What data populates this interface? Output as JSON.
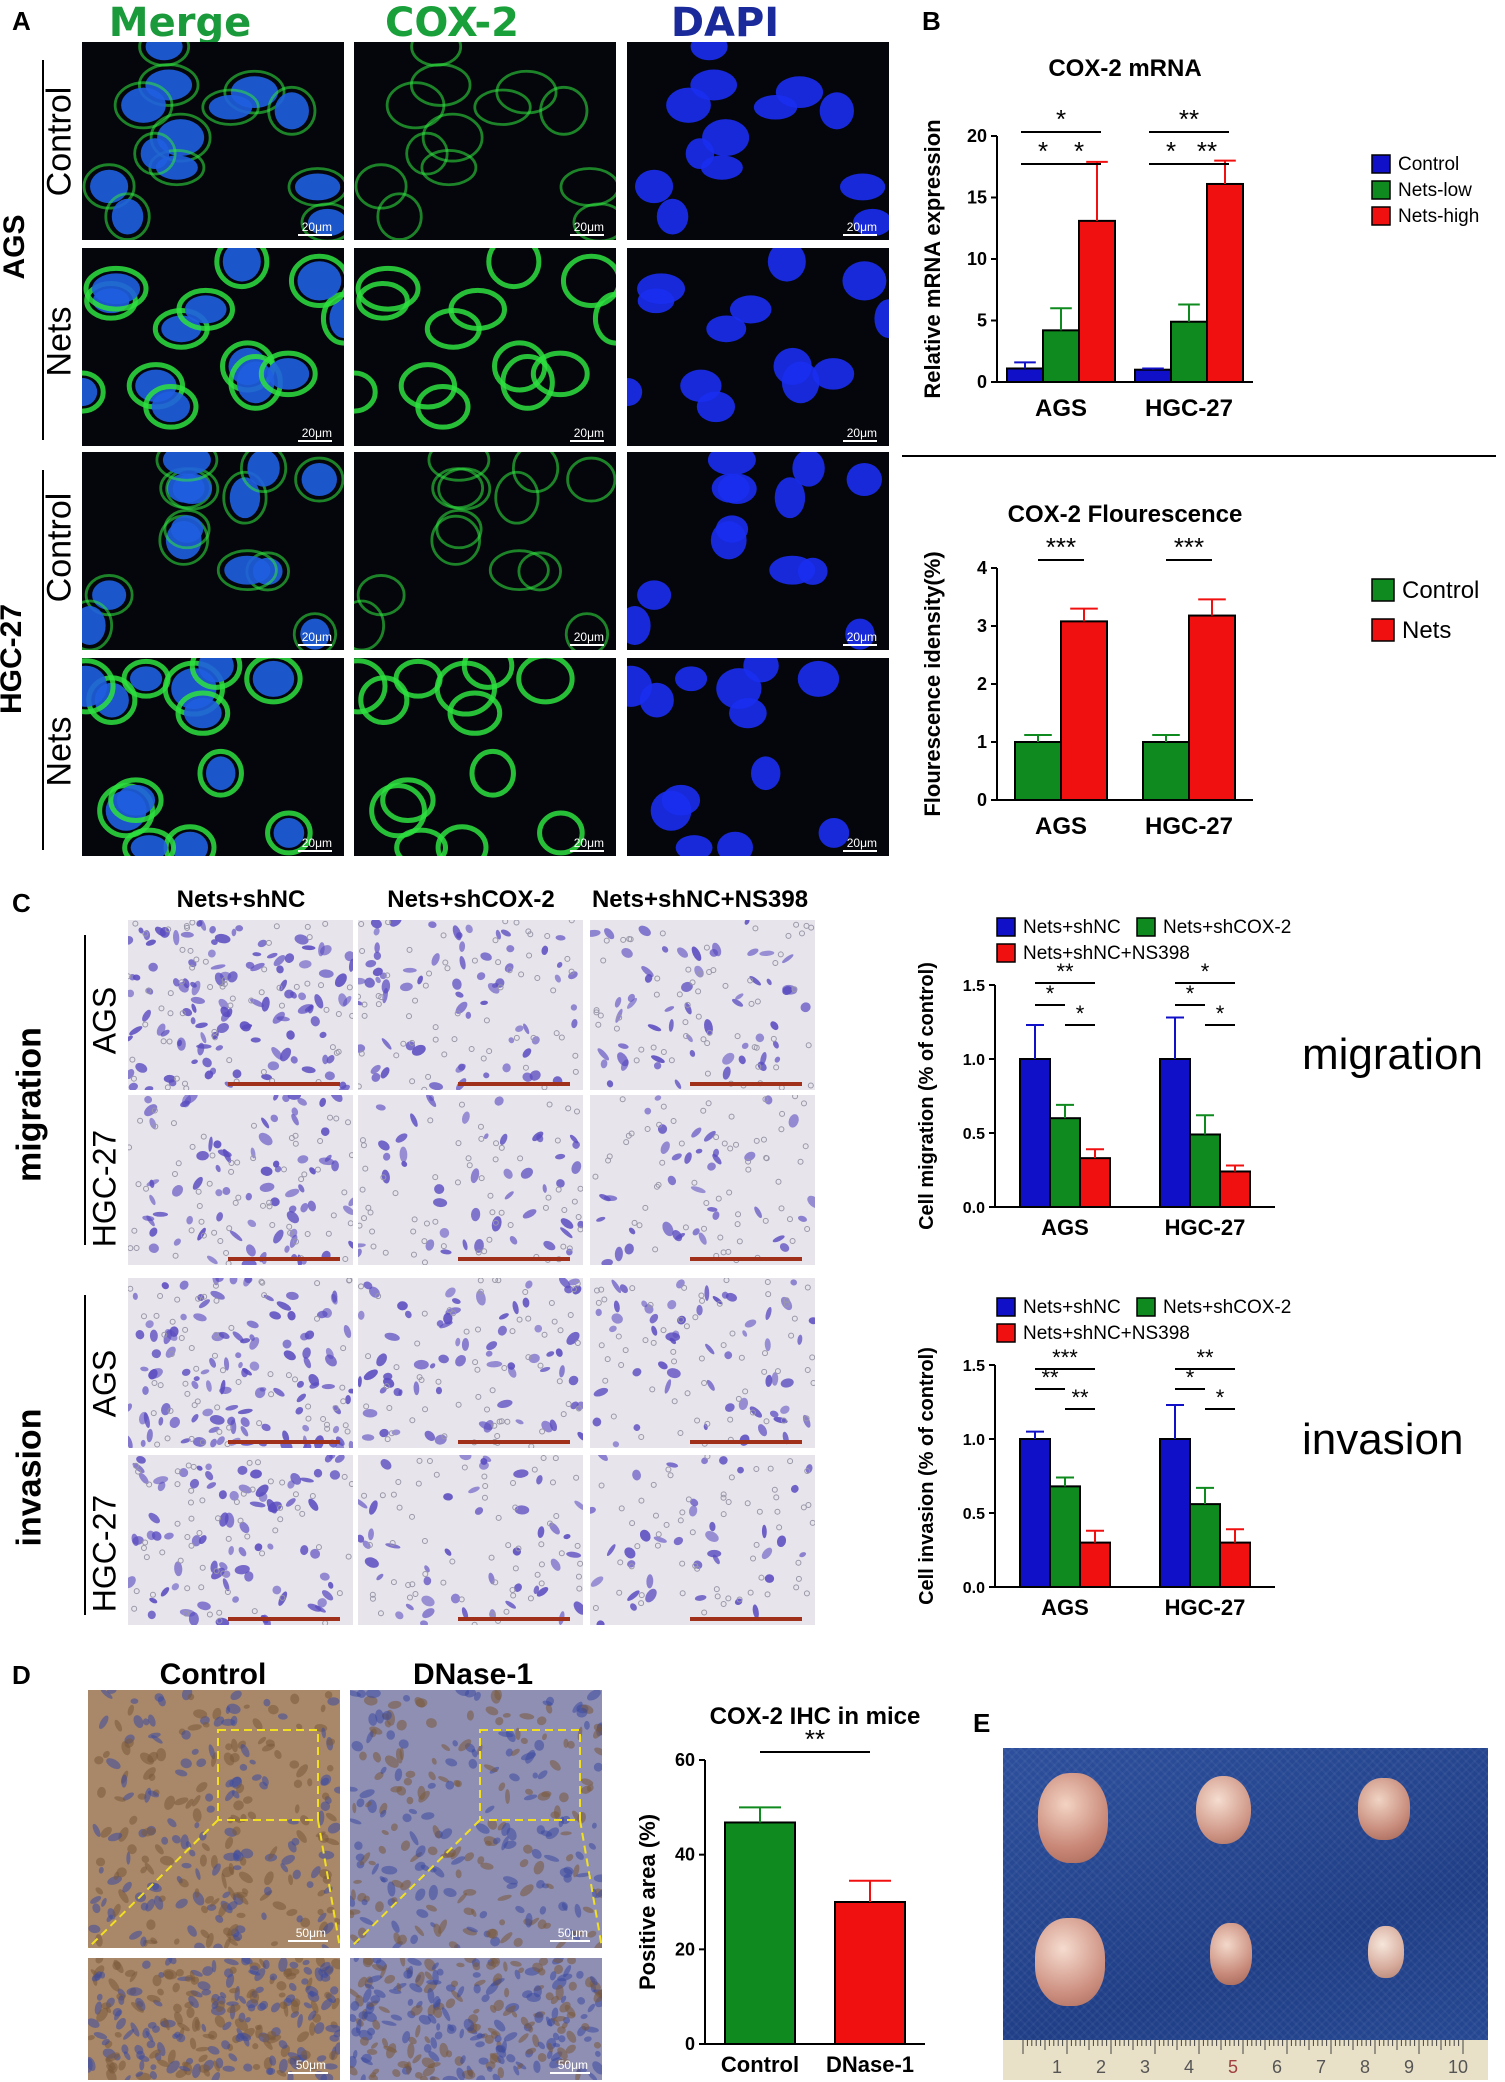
{
  "panel_letters": {
    "a": "A",
    "b": "B",
    "c": "C",
    "d": "D",
    "e": "E"
  },
  "panelA": {
    "col_headers": [
      "Merge",
      "COX-2",
      "DAPI"
    ],
    "col_colors": [
      "#1a9a3a",
      "#1aa03a",
      "#1a2a9a"
    ],
    "group_labels": [
      "AGS",
      "HGC-27"
    ],
    "row_labels": [
      "Control",
      "Nets",
      "Control",
      "Nets"
    ],
    "scale_bar": "20μm"
  },
  "panelC": {
    "col_headers": [
      "Nets+shNC",
      "Nets+shCOX-2",
      "Nets+shNC+NS398"
    ],
    "group_labels": [
      "migration",
      "invasion"
    ],
    "row_labels": [
      "AGS",
      "HGC-27",
      "AGS",
      "HGC-27"
    ],
    "side_words": [
      "migration",
      "invasion"
    ]
  },
  "panelD": {
    "col_headers": [
      "Control",
      "DNase-1"
    ],
    "scale_bar": "50μm"
  },
  "panelE": {
    "ruler_numbers": [
      "1",
      "2",
      "3",
      "4",
      "5",
      "6",
      "7",
      "8",
      "9",
      "10"
    ]
  },
  "chart_data": [
    {
      "id": "cox2-mrna",
      "type": "bar",
      "title": "COX-2 mRNA",
      "ylabel": "Relative mRNA expression",
      "xlabel": "",
      "ylim": [
        0,
        20
      ],
      "yticks": [
        0,
        5,
        10,
        15,
        20
      ],
      "categories": [
        "AGS",
        "HGC-27"
      ],
      "series": [
        {
          "name": "Control",
          "color": "#1010c8",
          "values": [
            1.1,
            1.0
          ],
          "errors": [
            0.5,
            0.1
          ]
        },
        {
          "name": "Nets-low",
          "color": "#0e8a1e",
          "values": [
            4.2,
            4.9
          ],
          "errors": [
            1.8,
            1.4
          ]
        },
        {
          "name": "Nets-high",
          "color": "#f01010",
          "values": [
            13.1,
            16.1
          ],
          "errors": [
            4.8,
            1.9
          ]
        }
      ],
      "legend": "right",
      "significance": [
        {
          "cat": 0,
          "from": 0,
          "to": 2,
          "label": "*"
        },
        {
          "cat": 0,
          "from": 0,
          "to": 1,
          "label": "*"
        },
        {
          "cat": 0,
          "from": 1,
          "to": 2,
          "label": "*"
        },
        {
          "cat": 1,
          "from": 0,
          "to": 2,
          "label": "**"
        },
        {
          "cat": 1,
          "from": 0,
          "to": 1,
          "label": "*"
        },
        {
          "cat": 1,
          "from": 1,
          "to": 2,
          "label": "**"
        }
      ]
    },
    {
      "id": "cox2-fluor",
      "type": "bar",
      "title": "COX-2 Flourescence",
      "ylabel": "Flourescence idensity(%)",
      "xlabel": "",
      "ylim": [
        0,
        4
      ],
      "yticks": [
        0,
        1,
        2,
        3,
        4
      ],
      "categories": [
        "AGS",
        "HGC-27"
      ],
      "series": [
        {
          "name": "Control",
          "color": "#0e8a1e",
          "values": [
            1.0,
            1.0
          ],
          "errors": [
            0.12,
            0.12
          ]
        },
        {
          "name": "Nets",
          "color": "#f01010",
          "values": [
            3.08,
            3.18
          ],
          "errors": [
            0.22,
            0.28
          ]
        }
      ],
      "legend": "right",
      "significance": [
        {
          "cat": 0,
          "from": 0,
          "to": 1,
          "label": "***"
        },
        {
          "cat": 1,
          "from": 0,
          "to": 1,
          "label": "***"
        }
      ]
    },
    {
      "id": "migration",
      "type": "bar",
      "title": "",
      "ylabel": "Cell migration (% of control)",
      "xlabel": "",
      "ylim": [
        0,
        1.5
      ],
      "yticks": [
        "0.0",
        "0.5",
        "1.0",
        "1.5"
      ],
      "categories": [
        "AGS",
        "HGC-27"
      ],
      "series": [
        {
          "name": "Nets+shNC",
          "color": "#1010c8",
          "values": [
            1.0,
            1.0
          ],
          "errors": [
            0.23,
            0.28
          ]
        },
        {
          "name": "Nets+shCOX-2",
          "color": "#0e8a1e",
          "values": [
            0.6,
            0.49
          ],
          "errors": [
            0.09,
            0.13
          ]
        },
        {
          "name": "Nets+shNC+NS398",
          "color": "#f01010",
          "values": [
            0.33,
            0.24
          ],
          "errors": [
            0.06,
            0.04
          ]
        }
      ],
      "legend": "top",
      "significance": [
        {
          "cat": 0,
          "from": 0,
          "to": 2,
          "label": "**"
        },
        {
          "cat": 0,
          "from": 0,
          "to": 1,
          "label": "*"
        },
        {
          "cat": 0,
          "from": 1,
          "to": 2,
          "label": "*"
        },
        {
          "cat": 1,
          "from": 0,
          "to": 2,
          "label": "*"
        },
        {
          "cat": 1,
          "from": 0,
          "to": 1,
          "label": "*"
        },
        {
          "cat": 1,
          "from": 1,
          "to": 2,
          "label": "*"
        }
      ]
    },
    {
      "id": "invasion",
      "type": "bar",
      "title": "",
      "ylabel": "Cell invasion (% of control)",
      "xlabel": "",
      "ylim": [
        0,
        1.5
      ],
      "yticks": [
        "0.0",
        "0.5",
        "1.0",
        "1.5"
      ],
      "categories": [
        "AGS",
        "HGC-27"
      ],
      "series": [
        {
          "name": "Nets+shNC",
          "color": "#1010c8",
          "values": [
            1.0,
            1.0
          ],
          "errors": [
            0.05,
            0.23
          ]
        },
        {
          "name": "Nets+shCOX-2",
          "color": "#0e8a1e",
          "values": [
            0.68,
            0.56
          ],
          "errors": [
            0.06,
            0.11
          ]
        },
        {
          "name": "Nets+shNC+NS398",
          "color": "#f01010",
          "values": [
            0.3,
            0.3
          ],
          "errors": [
            0.08,
            0.09
          ]
        }
      ],
      "legend": "top",
      "significance": [
        {
          "cat": 0,
          "from": 0,
          "to": 2,
          "label": "***"
        },
        {
          "cat": 0,
          "from": 0,
          "to": 1,
          "label": "**"
        },
        {
          "cat": 0,
          "from": 1,
          "to": 2,
          "label": "**"
        },
        {
          "cat": 1,
          "from": 0,
          "to": 2,
          "label": "**"
        },
        {
          "cat": 1,
          "from": 0,
          "to": 1,
          "label": "*"
        },
        {
          "cat": 1,
          "from": 1,
          "to": 2,
          "label": "*"
        }
      ]
    },
    {
      "id": "ihc",
      "type": "bar",
      "title": "COX-2 IHC in mice",
      "ylabel": "Positive area (%)",
      "xlabel": "",
      "ylim": [
        0,
        60
      ],
      "yticks": [
        0,
        20,
        40,
        60
      ],
      "categories": [
        "Control",
        "DNase-1"
      ],
      "series": [
        {
          "name": "",
          "color": "#0e8a1e",
          "values": [
            46.8,
            null
          ],
          "errors": [
            3.2,
            null
          ]
        },
        {
          "name": "",
          "color": "#f01010",
          "values": [
            null,
            30.0
          ],
          "errors": [
            null,
            4.5
          ]
        }
      ],
      "legend": "none",
      "significance": [
        {
          "label": "**"
        }
      ]
    }
  ]
}
